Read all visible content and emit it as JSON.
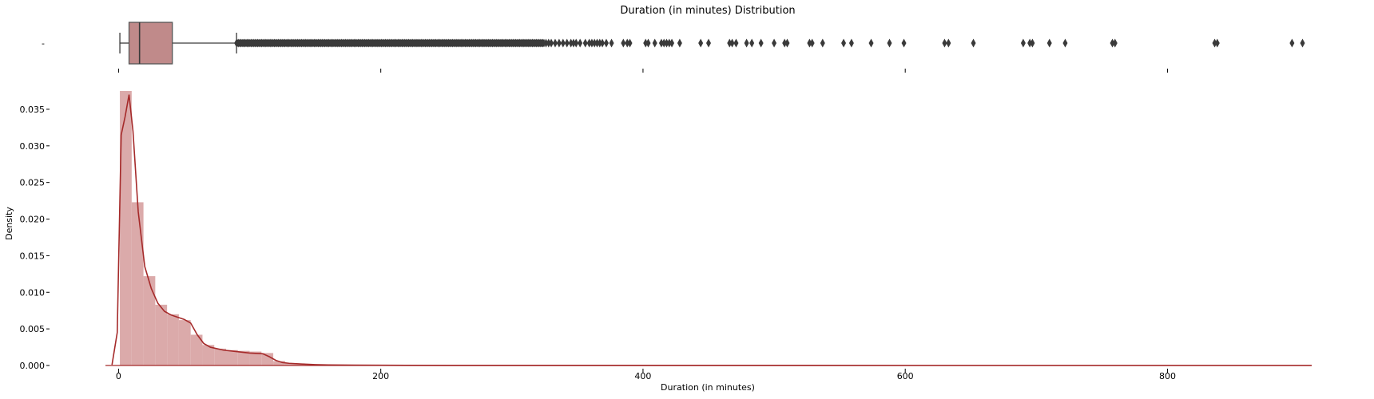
{
  "chart_data": [
    {
      "type": "box",
      "title": "Duration (in minutes) Distribution",
      "ytick_labels": [
        "-"
      ],
      "xlim": [
        -10,
        910
      ],
      "xticks": [
        0,
        200,
        400,
        600,
        800
      ],
      "show_xtick_labels": false,
      "box": {
        "whisker_low": 1,
        "q1": 8,
        "median": 16,
        "q3": 41,
        "whisker_high": 90,
        "fill": "#c08a8a",
        "edge": "#555555"
      },
      "outliers": {
        "dense_range": [
          90,
          325
        ],
        "points": [
          326,
          328,
          330,
          333,
          336,
          339,
          342,
          345,
          347,
          349,
          352,
          356,
          359,
          361,
          363,
          365,
          367,
          369,
          372,
          376,
          385,
          388,
          390,
          402,
          404,
          409,
          414,
          416,
          418,
          420,
          422,
          428,
          444,
          450,
          466,
          468,
          471,
          479,
          483,
          490,
          500,
          508,
          510,
          527,
          529,
          537,
          553,
          559,
          574,
          588,
          599,
          630,
          633,
          652,
          690,
          695,
          697,
          710,
          722,
          758,
          760,
          836,
          838,
          895,
          903
        ],
        "color": "#3a3a3a"
      }
    },
    {
      "type": "histogram",
      "xlabel": "Duration (in minutes)",
      "ylabel": "Density",
      "xlim": [
        -10,
        910
      ],
      "ylim": [
        0,
        0.0375
      ],
      "xticks": [
        0,
        200,
        400,
        600,
        800
      ],
      "yticks": [
        0.0,
        0.005,
        0.01,
        0.015,
        0.02,
        0.025,
        0.03,
        0.035
      ],
      "ytick_format_decimals": 3,
      "bins": {
        "start": 1,
        "width": 9,
        "density": [
          0.0375,
          0.0223,
          0.0122,
          0.0083,
          0.007,
          0.0062,
          0.0042,
          0.0028,
          0.0023,
          0.0021,
          0.002,
          0.0019,
          0.0017,
          0.0006,
          0.0003,
          0.0002,
          0.00012,
          8e-05,
          5e-05,
          3e-05
        ],
        "color": "#dbaaaa"
      },
      "kde": {
        "x": [
          -5,
          -1,
          2,
          5,
          8,
          11,
          15,
          20,
          25,
          30,
          35,
          40,
          45,
          50,
          55,
          60,
          65,
          70,
          80,
          90,
          100,
          110,
          115,
          120,
          125,
          130,
          140,
          150,
          160,
          180,
          200,
          250,
          300,
          400,
          600,
          800,
          910
        ],
        "density": [
          0.0001,
          0.0045,
          0.0315,
          0.034,
          0.037,
          0.032,
          0.021,
          0.0135,
          0.0105,
          0.0085,
          0.0074,
          0.0069,
          0.0066,
          0.0063,
          0.0058,
          0.0042,
          0.003,
          0.0025,
          0.0021,
          0.0019,
          0.0017,
          0.0016,
          0.0012,
          0.0007,
          0.0004,
          0.0003,
          0.0002,
          0.00012,
          8e-05,
          5e-05,
          3e-05,
          1e-05,
          5e-06,
          2e-06,
          1e-06,
          5e-07,
          3e-07
        ],
        "color": "#a52a2a"
      }
    }
  ]
}
